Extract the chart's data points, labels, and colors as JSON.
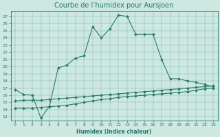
{
  "title": "Courbe de l’humidex pour Aursjoen",
  "xlabel": "Humidex (Indice chaleur)",
  "background_color": "#cce8e0",
  "line_color": "#2a7a6a",
  "xlim": [
    -0.5,
    23.5
  ],
  "ylim": [
    12.5,
    27.8
  ],
  "yticks": [
    13,
    14,
    15,
    16,
    17,
    18,
    19,
    20,
    21,
    22,
    23,
    24,
    25,
    26,
    27
  ],
  "xticks": [
    0,
    1,
    2,
    3,
    4,
    5,
    6,
    7,
    8,
    9,
    10,
    11,
    12,
    13,
    14,
    15,
    16,
    17,
    18,
    19,
    20,
    21,
    22,
    23
  ],
  "line1_x": [
    0,
    1,
    2,
    3,
    4,
    5,
    6,
    7,
    8,
    9,
    10,
    11,
    12,
    13,
    14,
    15,
    16,
    17,
    18,
    19,
    20,
    21,
    22,
    23
  ],
  "line1_y": [
    16.8,
    16.1,
    16.0,
    12.8,
    14.5,
    19.8,
    20.2,
    21.2,
    21.5,
    25.6,
    24.0,
    25.3,
    27.2,
    27.0,
    24.5,
    24.5,
    24.5,
    21.0,
    18.3,
    18.3,
    18.0,
    17.8,
    17.5,
    17.2
  ],
  "line2_x": [
    0,
    1,
    2,
    3,
    4,
    5,
    6,
    7,
    8,
    9,
    10,
    11,
    12,
    13,
    14,
    15,
    16,
    17,
    18,
    19,
    20,
    21,
    22,
    23
  ],
  "line2_y": [
    15.2,
    15.3,
    15.3,
    15.3,
    15.4,
    15.5,
    15.6,
    15.7,
    15.8,
    15.9,
    16.0,
    16.1,
    16.2,
    16.3,
    16.4,
    16.5,
    16.6,
    16.7,
    16.8,
    16.9,
    17.0,
    17.1,
    17.2,
    17.3
  ],
  "line3_x": [
    0,
    1,
    2,
    3,
    4,
    5,
    6,
    7,
    8,
    9,
    10,
    11,
    12,
    13,
    14,
    15,
    16,
    17,
    18,
    19,
    20,
    21,
    22,
    23
  ],
  "line3_y": [
    14.2,
    14.2,
    14.2,
    14.3,
    14.4,
    14.5,
    14.6,
    14.8,
    15.0,
    15.2,
    15.4,
    15.5,
    15.7,
    15.8,
    15.9,
    16.0,
    16.1,
    16.2,
    16.3,
    16.4,
    16.5,
    16.7,
    16.9,
    17.0
  ],
  "title_fontsize": 7,
  "label_fontsize": 5.5,
  "tick_fontsize": 4.5
}
